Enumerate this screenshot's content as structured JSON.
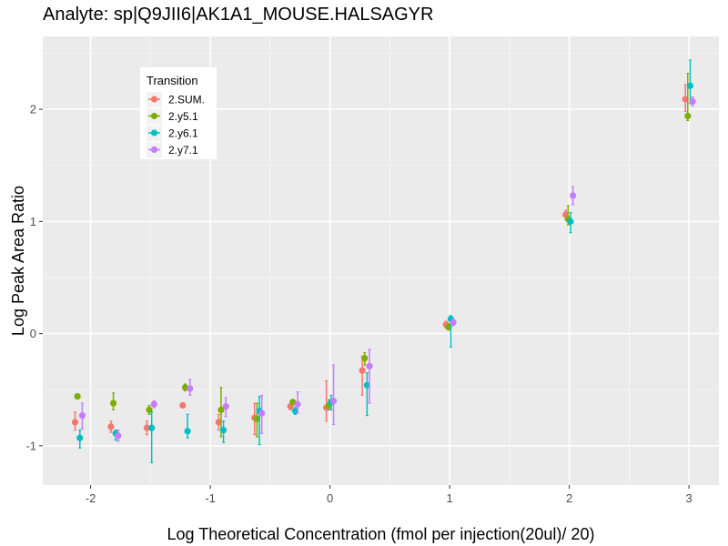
{
  "chart_data": {
    "type": "scatter",
    "title": "Analyte: sp|Q9JII6|AK1A1_MOUSE.HALSAGYR",
    "xlabel": "Log Theoretical Concentration (fmol per injection(20ul)/ 20)",
    "ylabel": "Log Peak Area Ratio",
    "xlim": [
      -2.4,
      3.25
    ],
    "ylim": [
      -1.35,
      2.65
    ],
    "x_ticks": [
      -2,
      -1,
      0,
      1,
      2,
      3
    ],
    "x_tick_labels": [
      "-2",
      "-1",
      "0",
      "1",
      "2",
      "3"
    ],
    "y_ticks": [
      -1,
      0,
      1,
      2
    ],
    "y_tick_labels": [
      "-1",
      "0",
      "1",
      "2"
    ],
    "grid": true,
    "legend": {
      "title": "Transition",
      "placement": "top-left"
    },
    "series": [
      {
        "name": "2.SUM.",
        "color": "#F8766D",
        "x_offset": -0.03,
        "points": [
          {
            "x": -2.1,
            "y": -0.79,
            "lo": -0.86,
            "hi": -0.7
          },
          {
            "x": -1.8,
            "y": -0.83,
            "lo": -0.88,
            "hi": -0.78
          },
          {
            "x": -1.5,
            "y": -0.84,
            "lo": -0.9,
            "hi": -0.78
          },
          {
            "x": -1.2,
            "y": -0.64,
            "lo": -0.66,
            "hi": -0.62
          },
          {
            "x": -0.9,
            "y": -0.79,
            "lo": -0.86,
            "hi": -0.72
          },
          {
            "x": -0.6,
            "y": -0.75,
            "lo": -0.9,
            "hi": -0.62
          },
          {
            "x": -0.3,
            "y": -0.65,
            "lo": -0.68,
            "hi": -0.62
          },
          {
            "x": 0.0,
            "y": -0.66,
            "lo": -0.78,
            "hi": -0.42
          },
          {
            "x": 0.3,
            "y": -0.33,
            "lo": -0.55,
            "hi": -0.2
          },
          {
            "x": 1.0,
            "y": 0.08,
            "lo": 0.05,
            "hi": 0.11
          },
          {
            "x": 2.0,
            "y": 1.06,
            "lo": 1.02,
            "hi": 1.1
          },
          {
            "x": 3.0,
            "y": 2.09,
            "lo": 1.98,
            "hi": 2.22
          }
        ]
      },
      {
        "name": "2.y5.1",
        "color": "#7CAE00",
        "x_offset": -0.01,
        "points": [
          {
            "x": -2.1,
            "y": -0.56,
            "lo": -0.58,
            "hi": -0.54
          },
          {
            "x": -1.8,
            "y": -0.62,
            "lo": -0.68,
            "hi": -0.53
          },
          {
            "x": -1.5,
            "y": -0.68,
            "lo": -0.72,
            "hi": -0.64
          },
          {
            "x": -1.2,
            "y": -0.48,
            "lo": -0.51,
            "hi": -0.45
          },
          {
            "x": -0.9,
            "y": -0.68,
            "lo": -0.92,
            "hi": -0.48
          },
          {
            "x": -0.6,
            "y": -0.76,
            "lo": -0.92,
            "hi": -0.62
          },
          {
            "x": -0.3,
            "y": -0.61,
            "lo": -0.63,
            "hi": -0.59
          },
          {
            "x": 0.0,
            "y": -0.64,
            "lo": -0.68,
            "hi": -0.59
          },
          {
            "x": 0.3,
            "y": -0.22,
            "lo": -0.28,
            "hi": -0.17
          },
          {
            "x": 1.0,
            "y": 0.06,
            "lo": 0.03,
            "hi": 0.09
          },
          {
            "x": 2.0,
            "y": 1.02,
            "lo": 0.97,
            "hi": 1.14
          },
          {
            "x": 3.0,
            "y": 1.94,
            "lo": 1.9,
            "hi": 2.32
          }
        ]
      },
      {
        "name": "2.y6.1",
        "color": "#00BFC4",
        "x_offset": 0.01,
        "points": [
          {
            "x": -2.1,
            "y": -0.93,
            "lo": -1.02,
            "hi": -0.86
          },
          {
            "x": -1.8,
            "y": -0.89,
            "lo": -0.95,
            "hi": -0.86
          },
          {
            "x": -1.5,
            "y": -0.84,
            "lo": -1.15,
            "hi": -0.7
          },
          {
            "x": -1.2,
            "y": -0.87,
            "lo": -0.93,
            "hi": -0.72
          },
          {
            "x": -0.9,
            "y": -0.86,
            "lo": -0.97,
            "hi": -0.78
          },
          {
            "x": -0.6,
            "y": -0.69,
            "lo": -0.99,
            "hi": -0.56
          },
          {
            "x": -0.3,
            "y": -0.69,
            "lo": -0.72,
            "hi": -0.66
          },
          {
            "x": 0.0,
            "y": -0.61,
            "lo": -0.68,
            "hi": -0.55
          },
          {
            "x": 0.3,
            "y": -0.46,
            "lo": -0.73,
            "hi": -0.35
          },
          {
            "x": 1.0,
            "y": 0.13,
            "lo": -0.12,
            "hi": 0.16
          },
          {
            "x": 2.0,
            "y": 1.0,
            "lo": 0.9,
            "hi": 1.08
          },
          {
            "x": 3.0,
            "y": 2.21,
            "lo": 2.05,
            "hi": 2.44
          }
        ]
      },
      {
        "name": "2.y7.1",
        "color": "#C77CFF",
        "x_offset": 0.03,
        "points": [
          {
            "x": -2.1,
            "y": -0.73,
            "lo": -0.85,
            "hi": -0.62
          },
          {
            "x": -1.8,
            "y": -0.91,
            "lo": -0.96,
            "hi": -0.86
          },
          {
            "x": -1.5,
            "y": -0.63,
            "lo": -0.66,
            "hi": -0.6
          },
          {
            "x": -1.2,
            "y": -0.49,
            "lo": -0.55,
            "hi": -0.41
          },
          {
            "x": -0.9,
            "y": -0.65,
            "lo": -0.74,
            "hi": -0.57
          },
          {
            "x": -0.6,
            "y": -0.71,
            "lo": -0.89,
            "hi": -0.55
          },
          {
            "x": -0.3,
            "y": -0.63,
            "lo": -0.71,
            "hi": -0.52
          },
          {
            "x": 0.0,
            "y": -0.6,
            "lo": -0.81,
            "hi": -0.28
          },
          {
            "x": 0.3,
            "y": -0.29,
            "lo": -0.62,
            "hi": -0.14
          },
          {
            "x": 1.0,
            "y": 0.1,
            "lo": 0.07,
            "hi": 0.13
          },
          {
            "x": 2.0,
            "y": 1.23,
            "lo": 1.15,
            "hi": 1.31
          },
          {
            "x": 3.0,
            "y": 2.07,
            "lo": 2.03,
            "hi": 2.11
          }
        ]
      }
    ]
  }
}
